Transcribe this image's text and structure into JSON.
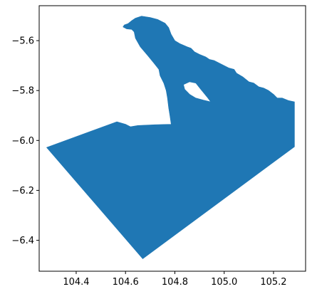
{
  "chart_data": {
    "type": "map",
    "title": "",
    "xlabel": "",
    "ylabel": "",
    "grid": false,
    "legend": "none",
    "xlim": [
      104.25,
      105.33
    ],
    "ylim": [
      -6.524,
      -5.46
    ],
    "x_ticks": [
      {
        "value": 104.4,
        "label": "104.4"
      },
      {
        "value": 104.6,
        "label": "104.6"
      },
      {
        "value": 104.8,
        "label": "104.8"
      },
      {
        "value": 105.0,
        "label": "105.0"
      },
      {
        "value": 105.2,
        "label": "105.2"
      }
    ],
    "y_ticks": [
      {
        "value": -5.6,
        "label": "−5.6"
      },
      {
        "value": -5.8,
        "label": "−5.8"
      },
      {
        "value": -6.0,
        "label": "−6.0"
      },
      {
        "value": -6.2,
        "label": "−6.2"
      },
      {
        "value": -6.4,
        "label": "−6.4"
      }
    ],
    "fill_color": "#1f77b4",
    "series": [
      {
        "region": [
          [
            104.67,
            -6.474
          ],
          [
            105.285,
            -6.025
          ],
          [
            105.285,
            -5.845
          ],
          [
            105.26,
            -5.84
          ],
          [
            105.235,
            -5.83
          ],
          [
            105.215,
            -5.83
          ],
          [
            105.2,
            -5.815
          ],
          [
            105.18,
            -5.8
          ],
          [
            105.16,
            -5.79
          ],
          [
            105.14,
            -5.785
          ],
          [
            105.12,
            -5.77
          ],
          [
            105.1,
            -5.765
          ],
          [
            105.075,
            -5.745
          ],
          [
            105.05,
            -5.73
          ],
          [
            105.04,
            -5.715
          ],
          [
            105.02,
            -5.71
          ],
          [
            105.0,
            -5.7
          ],
          [
            104.98,
            -5.69
          ],
          [
            104.96,
            -5.68
          ],
          [
            104.94,
            -5.675
          ],
          [
            104.925,
            -5.665
          ],
          [
            104.9,
            -5.655
          ],
          [
            104.88,
            -5.645
          ],
          [
            104.865,
            -5.63
          ],
          [
            104.85,
            -5.625
          ],
          [
            104.82,
            -5.612
          ],
          [
            104.8,
            -5.6
          ],
          [
            104.785,
            -5.575
          ],
          [
            104.775,
            -5.548
          ],
          [
            104.76,
            -5.53
          ],
          [
            104.73,
            -5.515
          ],
          [
            104.7,
            -5.507
          ],
          [
            104.665,
            -5.502
          ],
          [
            104.64,
            -5.51
          ],
          [
            104.625,
            -5.52
          ],
          [
            104.61,
            -5.532
          ],
          [
            104.595,
            -5.537
          ],
          [
            104.59,
            -5.545
          ],
          [
            104.605,
            -5.553
          ],
          [
            104.625,
            -5.555
          ],
          [
            104.635,
            -5.565
          ],
          [
            104.64,
            -5.59
          ],
          [
            104.66,
            -5.625
          ],
          [
            104.69,
            -5.66
          ],
          [
            104.715,
            -5.69
          ],
          [
            104.735,
            -5.715
          ],
          [
            104.74,
            -5.74
          ],
          [
            104.755,
            -5.77
          ],
          [
            104.765,
            -5.8
          ],
          [
            104.77,
            -5.83
          ],
          [
            104.775,
            -5.87
          ],
          [
            104.78,
            -5.9
          ],
          [
            104.785,
            -5.935
          ],
          [
            104.72,
            -5.937
          ],
          [
            104.65,
            -5.94
          ],
          [
            104.62,
            -5.945
          ],
          [
            104.6,
            -5.935
          ],
          [
            104.565,
            -5.925
          ],
          [
            104.28,
            -6.028
          ]
        ],
        "holes": [
          [
            [
              104.835,
              -5.776
            ],
            [
              104.86,
              -5.765
            ],
            [
              104.885,
              -5.77
            ],
            [
              104.905,
              -5.795
            ],
            [
              104.93,
              -5.825
            ],
            [
              104.945,
              -5.845
            ],
            [
              104.915,
              -5.838
            ],
            [
              104.885,
              -5.83
            ],
            [
              104.86,
              -5.815
            ],
            [
              104.84,
              -5.795
            ]
          ]
        ]
      }
    ]
  }
}
